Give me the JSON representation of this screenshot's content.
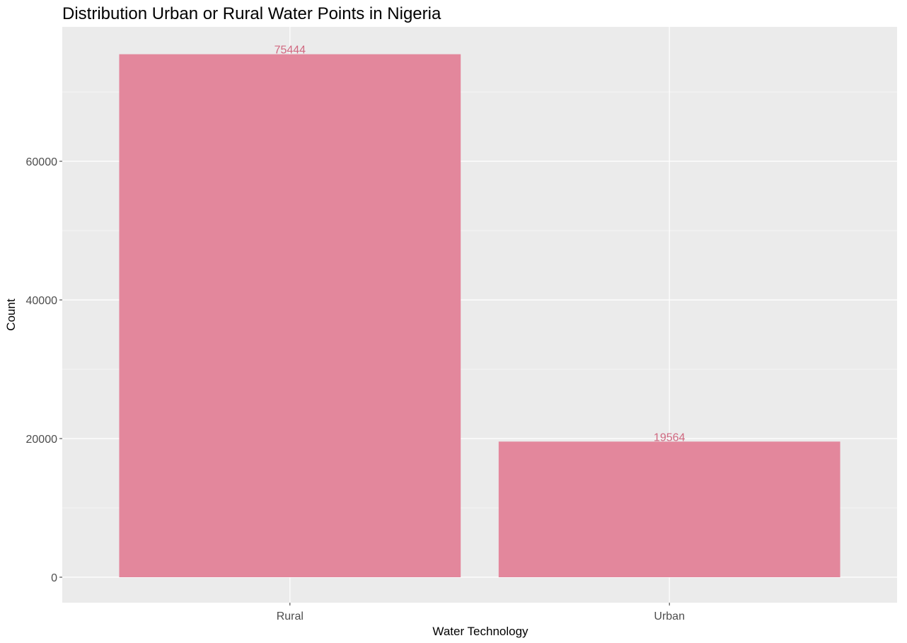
{
  "chart_data": {
    "type": "bar",
    "title": "Distribution Urban or Rural Water Points in Nigeria",
    "xlabel": "Water Technology",
    "ylabel": "Count",
    "categories": [
      "Rural",
      "Urban"
    ],
    "values": [
      75444,
      19564
    ],
    "data_labels": [
      "75444",
      "19564"
    ],
    "ylim": [
      0,
      80000
    ],
    "yticks": [
      0,
      20000,
      40000,
      60000
    ],
    "ytick_labels": [
      "0",
      "20000",
      "40000",
      "60000"
    ],
    "grid": true,
    "legend": "none",
    "colors": {
      "bar": "#e3879c",
      "data_label": "#d06880",
      "panel": "#ebebeb",
      "grid": "#ffffff"
    }
  }
}
